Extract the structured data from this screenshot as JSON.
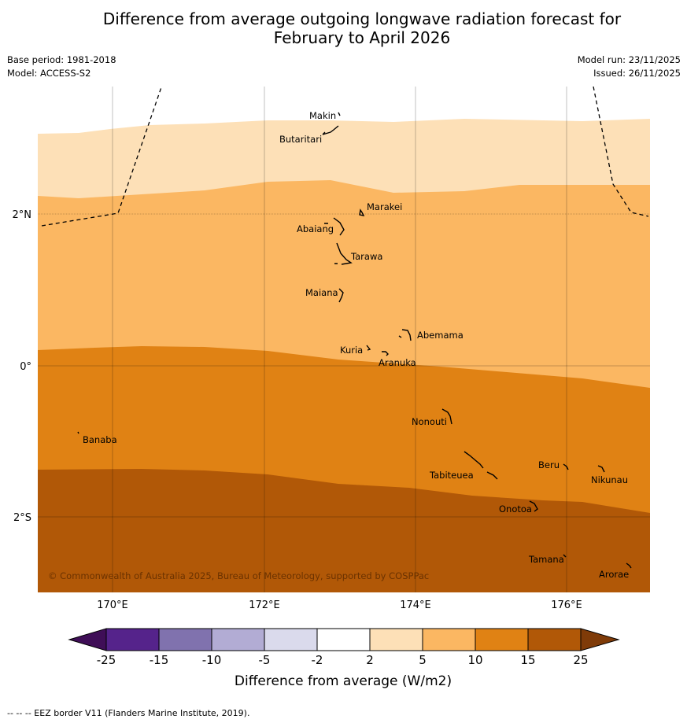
{
  "title": {
    "line1": "Difference from average outgoing longwave radiation forecast for",
    "line2": "February to April 2026"
  },
  "meta": {
    "base_period": "Base period: 1981-2018",
    "model": "Model: ACCESS-S2",
    "model_run": "Model run: 23/11/2025",
    "issued": "Issued: 26/11/2025"
  },
  "axes": {
    "lat_labels": [
      "2°N",
      "0°",
      "2°S"
    ],
    "lon_labels": [
      "170°E",
      "172°E",
      "174°E",
      "176°E"
    ]
  },
  "islands": {
    "makin": "Makin",
    "butaritari": "Butaritari",
    "marakei": "Marakei",
    "abaiang": "Abaiang",
    "tarawa": "Tarawa",
    "maiana": "Maiana",
    "abemama": "Abemama",
    "kuria": "Kuria",
    "aranuka": "Aranuka",
    "nonouti": "Nonouti",
    "banaba": "Banaba",
    "tabiteuea": "Tabiteuea",
    "beru": "Beru",
    "nikunau": "Nikunau",
    "onotoa": "Onotoa",
    "tamana": "Tamana",
    "arorae": "Arorae"
  },
  "copyright": "© Commonwealth of Australia 2025, Bureau of Meteorology, supported by COSPPac",
  "colorbar": {
    "title": "Difference from average (W/m2)",
    "ticks": [
      "-25",
      "-15",
      "-10",
      "-5",
      "-2",
      "2",
      "5",
      "10",
      "15",
      "25"
    ],
    "colors": {
      "below": "#3f0e57",
      "c1": "#55238b",
      "c2": "#8072ae",
      "c3": "#b2acd4",
      "c4": "#dadaec",
      "c5": "#ffffff",
      "c6": "#fde0b7",
      "c7": "#fbb762",
      "c8": "#e08214",
      "c9": "#b15807",
      "above": "#7f3b08"
    }
  },
  "footer": "-- -- -- EEZ border V11 (Flanders Marine Institute, 2019)."
}
